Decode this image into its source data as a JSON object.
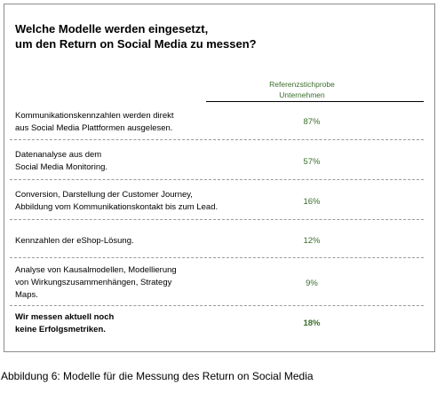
{
  "title": {
    "line1": "Welche Modelle werden eingesetzt,",
    "line2": "um den Return on Social Media zu messen?"
  },
  "column_header": {
    "line1": "Referenzstichprobe",
    "line2": "Unternehmen"
  },
  "rows": [
    {
      "label_lines": [
        "Kommunikationskennzahlen werden direkt",
        "aus Social Media Plattformen ausgelesen."
      ],
      "value": "87%"
    },
    {
      "label_lines": [
        "Datenanalyse aus dem",
        "Social Media Monitoring."
      ],
      "value": "57%"
    },
    {
      "label_lines": [
        "Conversion, Darstellung der Customer Journey,",
        "Abbildung vom Kommunikationskontakt bis zum Lead."
      ],
      "value": "16%"
    },
    {
      "label_lines": [
        "Kennzahlen der eShop-Lösung."
      ],
      "value": "12%"
    },
    {
      "label_lines": [
        "Analyse von Kausalmodellen, Modellierung",
        "von Wirkungszusammenhängen, Strategy",
        "Maps."
      ],
      "value": "9%"
    },
    {
      "label_lines": [
        "Wir messen aktuell noch",
        "keine Erfolgsmetriken."
      ],
      "value": "18%"
    }
  ],
  "caption": "Abbildung 6: Modelle für die Messung des Return on Social Media"
}
